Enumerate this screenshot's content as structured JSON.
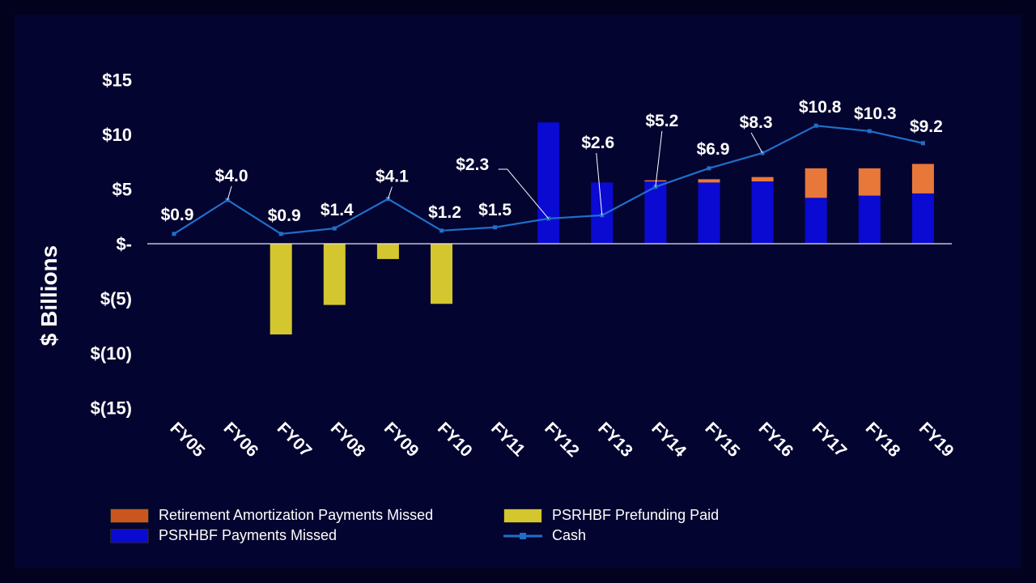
{
  "chart_data": {
    "type": "bar",
    "title": "",
    "xlabel": "",
    "ylabel": "$ Billions",
    "ylim": [
      -15,
      15
    ],
    "yticks": [
      15,
      10,
      5,
      0,
      -5,
      -10,
      -15
    ],
    "ytick_labels": [
      "$15",
      "$10",
      "$5",
      "$-",
      "$(5)",
      "$(10)",
      "$(15)"
    ],
    "categories": [
      "FY05",
      "FY06",
      "FY07",
      "FY08",
      "FY09",
      "FY10",
      "FY11",
      "FY12",
      "FY13",
      "FY14",
      "FY15",
      "FY16",
      "FY17",
      "FY18",
      "FY19"
    ],
    "series": [
      {
        "name": "PSRHBF Prefunding Paid",
        "kind": "bar",
        "color": "#d4c62f",
        "values": [
          0,
          0,
          -8.3,
          -5.6,
          -1.4,
          -5.5,
          0,
          0,
          0,
          0,
          0,
          0,
          0,
          0,
          0
        ]
      },
      {
        "name": "PSRHBF Payments Missed",
        "kind": "bar",
        "color": "#0a0ad2",
        "values": [
          0,
          0,
          0,
          0,
          0,
          0,
          0,
          11.1,
          5.6,
          5.7,
          5.6,
          5.7,
          4.2,
          4.4,
          4.6
        ]
      },
      {
        "name": "Retirement Amortization Payments Missed",
        "kind": "bar",
        "color": "#e8783a",
        "values": [
          0,
          0,
          0,
          0,
          0,
          0,
          0,
          0,
          0,
          0.1,
          0.3,
          0.4,
          2.7,
          2.5,
          2.7
        ]
      },
      {
        "name": "Cash",
        "kind": "line",
        "color": "#1f6fc8",
        "values": [
          0.9,
          4.0,
          0.9,
          1.4,
          4.1,
          1.2,
          1.5,
          2.3,
          2.6,
          5.2,
          6.9,
          8.3,
          10.8,
          10.3,
          9.2
        ],
        "labels": [
          "$0.9",
          "$4.0",
          "$0.9",
          "$1.4",
          "$4.1",
          "$1.2",
          "$1.5",
          "$2.3",
          "$2.6",
          "$5.2",
          "$6.9",
          "$8.3",
          "$10.8",
          "$10.3",
          "$9.2"
        ]
      }
    ],
    "legend": {
      "position": "bottom",
      "items": [
        {
          "label": "Retirement Amortization Payments Missed",
          "color": "#c8561e"
        },
        {
          "label": "PSRHBF Prefunding Paid",
          "color": "#d4c62f"
        },
        {
          "label": "PSRHBF Payments Missed",
          "color": "#0a0ad2"
        },
        {
          "label": "Cash",
          "color": "#1f6fc8"
        }
      ]
    }
  }
}
